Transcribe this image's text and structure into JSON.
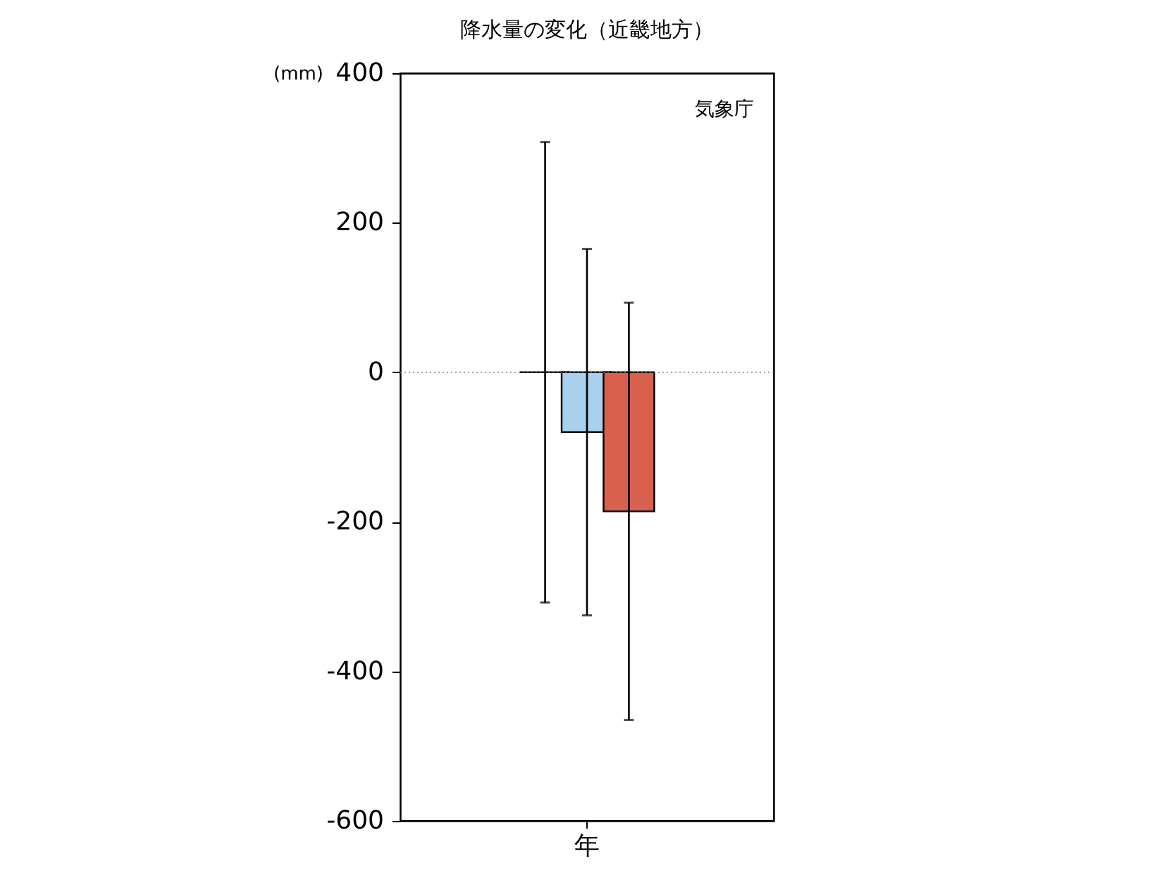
{
  "chart_data": {
    "type": "bar",
    "title": "降水量の変化（近畿地方）",
    "ylabel": "(mm)",
    "categories": [
      "年"
    ],
    "series": [
      {
        "color": "#000000",
        "values": [
          0
        ],
        "errors": [
          308
        ]
      },
      {
        "color": "#a9d0ec",
        "values": [
          -80
        ],
        "errors": [
          [
            -325,
            165
          ]
        ]
      },
      {
        "color": "#d9604c",
        "values": [
          -186
        ],
        "errors": [
          [
            -465,
            93
          ]
        ]
      }
    ],
    "ylim": [
      -600,
      400
    ],
    "yticks": [
      -600,
      -400,
      -200,
      0,
      200,
      400
    ],
    "ref_lines": [
      {
        "axis": "y",
        "value": 0,
        "color": "#777777",
        "line_style": "dotted"
      }
    ],
    "annotations": [
      "気象庁"
    ],
    "grid": false
  }
}
